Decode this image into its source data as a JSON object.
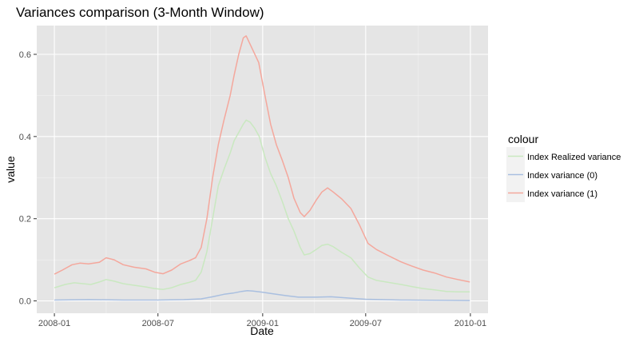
{
  "chart_data": {
    "type": "line",
    "title": "Variances comparison (3-Month Window)",
    "xlabel": "Date",
    "ylabel": "value",
    "x_ticks": [
      "2008-01",
      "2008-07",
      "2009-01",
      "2009-07",
      "2010-01"
    ],
    "y_ticks": [
      "0.0",
      "0.2",
      "0.4",
      "0.6"
    ],
    "xlim": [
      "2007-12-01",
      "2010-02-01"
    ],
    "ylim": [
      -0.03,
      0.67
    ],
    "grid": true,
    "legend": {
      "title": "colour",
      "position": "right",
      "entries": [
        "Index Realized variance",
        "Index variance (0)",
        "Index variance (1)"
      ]
    },
    "series": [
      {
        "name": "Index Realized variance",
        "color": "#c9e8c0",
        "points": [
          [
            "2008-01-01",
            0.032
          ],
          [
            "2008-01-20",
            0.04
          ],
          [
            "2008-02-05",
            0.044
          ],
          [
            "2008-02-20",
            0.042
          ],
          [
            "2008-03-05",
            0.04
          ],
          [
            "2008-03-20",
            0.046
          ],
          [
            "2008-04-01",
            0.052
          ],
          [
            "2008-04-15",
            0.048
          ],
          [
            "2008-05-01",
            0.042
          ],
          [
            "2008-05-20",
            0.038
          ],
          [
            "2008-06-10",
            0.034
          ],
          [
            "2008-06-25",
            0.03
          ],
          [
            "2008-07-10",
            0.028
          ],
          [
            "2008-07-25",
            0.032
          ],
          [
            "2008-08-10",
            0.04
          ],
          [
            "2008-08-25",
            0.045
          ],
          [
            "2008-09-05",
            0.05
          ],
          [
            "2008-09-15",
            0.07
          ],
          [
            "2008-09-25",
            0.12
          ],
          [
            "2008-10-05",
            0.2
          ],
          [
            "2008-10-15",
            0.28
          ],
          [
            "2008-10-25",
            0.32
          ],
          [
            "2008-11-05",
            0.36
          ],
          [
            "2008-11-12",
            0.39
          ],
          [
            "2008-11-20",
            0.41
          ],
          [
            "2008-11-28",
            0.43
          ],
          [
            "2008-12-03",
            0.44
          ],
          [
            "2008-12-10",
            0.435
          ],
          [
            "2008-12-18",
            0.42
          ],
          [
            "2008-12-26",
            0.4
          ],
          [
            "2009-01-05",
            0.35
          ],
          [
            "2009-01-15",
            0.31
          ],
          [
            "2009-01-25",
            0.28
          ],
          [
            "2009-02-05",
            0.24
          ],
          [
            "2009-02-15",
            0.2
          ],
          [
            "2009-02-25",
            0.17
          ],
          [
            "2009-03-08",
            0.13
          ],
          [
            "2009-03-15",
            0.112
          ],
          [
            "2009-03-25",
            0.115
          ],
          [
            "2009-04-05",
            0.125
          ],
          [
            "2009-04-15",
            0.135
          ],
          [
            "2009-04-25",
            0.138
          ],
          [
            "2009-05-05",
            0.132
          ],
          [
            "2009-05-20",
            0.118
          ],
          [
            "2009-06-05",
            0.105
          ],
          [
            "2009-06-20",
            0.08
          ],
          [
            "2009-07-05",
            0.058
          ],
          [
            "2009-07-20",
            0.05
          ],
          [
            "2009-08-10",
            0.045
          ],
          [
            "2009-09-01",
            0.04
          ],
          [
            "2009-09-20",
            0.035
          ],
          [
            "2009-10-10",
            0.03
          ],
          [
            "2009-10-30",
            0.027
          ],
          [
            "2009-11-20",
            0.023
          ],
          [
            "2009-12-10",
            0.022
          ],
          [
            "2009-12-31",
            0.022
          ]
        ]
      },
      {
        "name": "Index variance (0)",
        "color": "#a9bfe0",
        "points": [
          [
            "2008-01-01",
            0.002
          ],
          [
            "2008-03-01",
            0.003
          ],
          [
            "2008-05-01",
            0.002
          ],
          [
            "2008-07-01",
            0.002
          ],
          [
            "2008-08-15",
            0.003
          ],
          [
            "2008-09-15",
            0.005
          ],
          [
            "2008-10-05",
            0.01
          ],
          [
            "2008-10-25",
            0.016
          ],
          [
            "2008-11-10",
            0.019
          ],
          [
            "2008-11-25",
            0.023
          ],
          [
            "2008-12-05",
            0.025
          ],
          [
            "2008-12-15",
            0.024
          ],
          [
            "2009-01-01",
            0.021
          ],
          [
            "2009-01-20",
            0.017
          ],
          [
            "2009-02-10",
            0.013
          ],
          [
            "2009-03-05",
            0.009
          ],
          [
            "2009-04-05",
            0.009
          ],
          [
            "2009-05-01",
            0.01
          ],
          [
            "2009-06-01",
            0.007
          ],
          [
            "2009-07-01",
            0.004
          ],
          [
            "2009-09-01",
            0.002
          ],
          [
            "2009-12-31",
            0.001
          ]
        ]
      },
      {
        "name": "Index variance (1)",
        "color": "#f4a79c",
        "points": [
          [
            "2008-01-01",
            0.065
          ],
          [
            "2008-01-15",
            0.075
          ],
          [
            "2008-02-01",
            0.088
          ],
          [
            "2008-02-15",
            0.092
          ],
          [
            "2008-03-01",
            0.09
          ],
          [
            "2008-03-20",
            0.094
          ],
          [
            "2008-04-01",
            0.105
          ],
          [
            "2008-04-15",
            0.1
          ],
          [
            "2008-05-01",
            0.088
          ],
          [
            "2008-05-20",
            0.082
          ],
          [
            "2008-06-10",
            0.078
          ],
          [
            "2008-06-25",
            0.07
          ],
          [
            "2008-07-10",
            0.066
          ],
          [
            "2008-07-25",
            0.075
          ],
          [
            "2008-08-10",
            0.09
          ],
          [
            "2008-08-25",
            0.098
          ],
          [
            "2008-09-05",
            0.105
          ],
          [
            "2008-09-15",
            0.13
          ],
          [
            "2008-09-25",
            0.2
          ],
          [
            "2008-10-05",
            0.3
          ],
          [
            "2008-10-15",
            0.38
          ],
          [
            "2008-10-25",
            0.44
          ],
          [
            "2008-11-05",
            0.5
          ],
          [
            "2008-11-12",
            0.55
          ],
          [
            "2008-11-20",
            0.6
          ],
          [
            "2008-11-28",
            0.64
          ],
          [
            "2008-12-03",
            0.645
          ],
          [
            "2008-12-08",
            0.63
          ],
          [
            "2008-12-15",
            0.61
          ],
          [
            "2008-12-25",
            0.58
          ],
          [
            "2009-01-05",
            0.5
          ],
          [
            "2009-01-15",
            0.43
          ],
          [
            "2009-01-25",
            0.38
          ],
          [
            "2009-02-05",
            0.34
          ],
          [
            "2009-02-15",
            0.3
          ],
          [
            "2009-02-25",
            0.25
          ],
          [
            "2009-03-08",
            0.215
          ],
          [
            "2009-03-15",
            0.205
          ],
          [
            "2009-03-25",
            0.22
          ],
          [
            "2009-04-05",
            0.245
          ],
          [
            "2009-04-15",
            0.265
          ],
          [
            "2009-04-25",
            0.275
          ],
          [
            "2009-05-05",
            0.265
          ],
          [
            "2009-05-20",
            0.248
          ],
          [
            "2009-06-05",
            0.225
          ],
          [
            "2009-06-20",
            0.185
          ],
          [
            "2009-07-05",
            0.14
          ],
          [
            "2009-07-20",
            0.125
          ],
          [
            "2009-08-10",
            0.11
          ],
          [
            "2009-09-01",
            0.095
          ],
          [
            "2009-09-20",
            0.085
          ],
          [
            "2009-10-10",
            0.075
          ],
          [
            "2009-10-30",
            0.068
          ],
          [
            "2009-11-20",
            0.058
          ],
          [
            "2009-12-10",
            0.052
          ],
          [
            "2009-12-31",
            0.046
          ]
        ]
      }
    ]
  },
  "colors": {
    "panel_background": "#e5e5e5",
    "grid_major": "#ffffff",
    "grid_minor": "#f2f2f2",
    "legend_key_background": "#f2f2f2"
  }
}
